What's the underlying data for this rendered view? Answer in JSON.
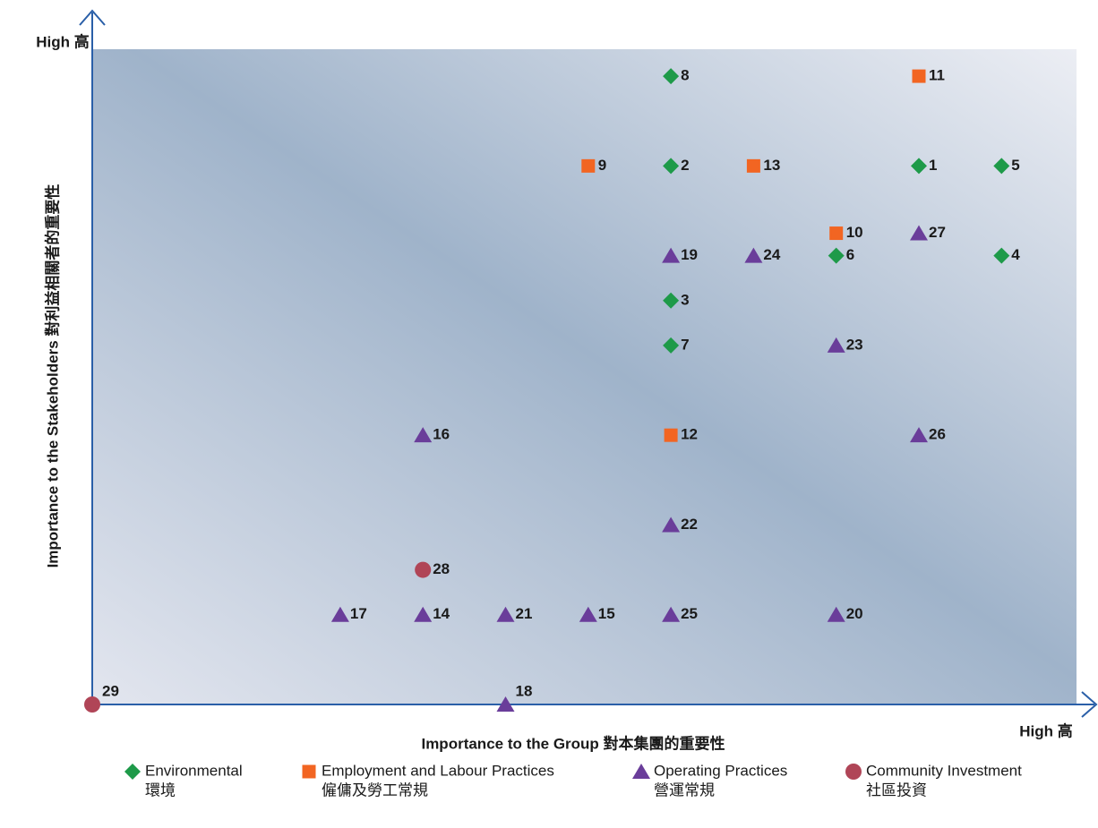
{
  "chart_data": {
    "type": "scatter",
    "x_label": "Importance to the Group  對本集團的重要性",
    "y_label": "Importance to the Stakeholders  對利益相關者的重要性",
    "x_high_label": "High 高",
    "y_high_label": "High 高",
    "xlim": [
      0,
      12
    ],
    "ylim": [
      0,
      14.6
    ],
    "series": [
      {
        "name": "Environmental",
        "name_zh": "環境",
        "color": "#1e9a49",
        "marker": "diamond",
        "x": [
          7,
          7,
          10,
          11,
          9,
          11,
          7,
          7
        ],
        "values": [
          14,
          12,
          12,
          12,
          10,
          10,
          9,
          8
        ],
        "labels": [
          "8",
          "2",
          "1",
          "5",
          "6",
          "4",
          "3",
          "7"
        ]
      },
      {
        "name": "Employment and Labour Practices",
        "name_zh": "僱傭及勞工常規",
        "color": "#f26522",
        "marker": "square",
        "x": [
          10,
          6,
          8,
          9,
          7
        ],
        "values": [
          14,
          12,
          12,
          10.5,
          6
        ],
        "labels": [
          "11",
          "9",
          "13",
          "10",
          "12"
        ]
      },
      {
        "name": "Operating Practices",
        "name_zh": "營運常規",
        "color": "#6a3d9a",
        "marker": "triangle",
        "x": [
          10,
          7,
          8,
          9,
          4,
          10,
          7,
          3,
          4,
          5,
          6,
          7,
          9,
          5
        ],
        "values": [
          10.5,
          10,
          10,
          8,
          6,
          6,
          4,
          2,
          2,
          2,
          2,
          2,
          2,
          0
        ],
        "labels": [
          "27",
          "19",
          "24",
          "23",
          "16",
          "26",
          "22",
          "17",
          "14",
          "21",
          "15",
          "25",
          "20",
          "18"
        ]
      },
      {
        "name": "Community Investment",
        "name_zh": "社區投資",
        "color": "#b04557",
        "marker": "circle",
        "x": [
          4,
          0
        ],
        "values": [
          3,
          0
        ],
        "labels": [
          "28",
          "29"
        ]
      }
    ]
  }
}
